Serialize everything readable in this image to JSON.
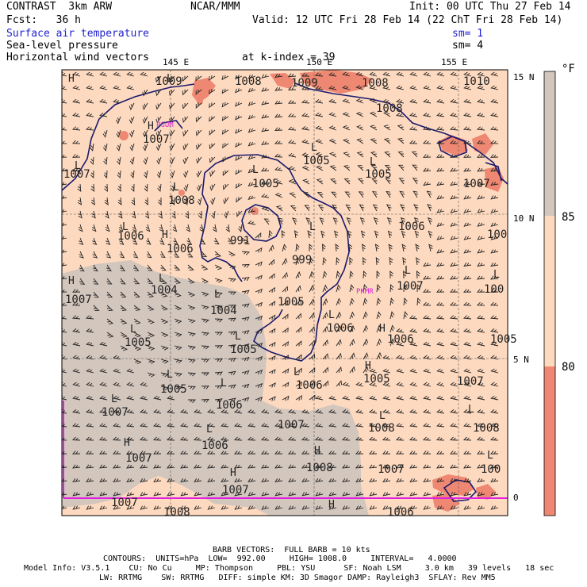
{
  "header": {
    "model": "CONTRAST  3km ARW",
    "org": "NCAR/MMM",
    "init": "Init: 00 UTC Thu 27 Feb 14",
    "fcst": "Fcst:   36 h",
    "valid": "Valid: 12 UTC Fri 28 Feb 14 (22 ChT Fri 28 Feb 14)",
    "field1": "Surface air temperature",
    "field2": "Sea-level pressure",
    "field3": "Horizontal wind vectors",
    "sm1": "sm= 1",
    "sm2": "sm= 4",
    "level": "at k-index = 39"
  },
  "axes": {
    "lon_labels": [
      "145 E",
      "150 E",
      "155 E"
    ],
    "lat_labels": [
      "15 N",
      "10 N",
      "5 N",
      "0"
    ]
  },
  "colorbar": {
    "unit": "°F",
    "labels": [
      "85",
      "80"
    ],
    "colors": {
      "cool": "#ef8872",
      "mid": "#fdd9bf",
      "warm": "#d3c6bd"
    }
  },
  "map_colors": {
    "background": "#fdd9bf",
    "gray": "#d3c6bd",
    "salmon": "#ef8872",
    "coast": "#1a1a6e",
    "equator_line": "#e020e0",
    "station_label": "#e020e0"
  },
  "pressure_labels": [
    {
      "text": "1009"
    },
    {
      "text": "1008"
    },
    {
      "text": "1008"
    },
    {
      "text": "1009"
    },
    {
      "text": "1008"
    },
    {
      "text": "1010"
    },
    {
      "text": "1007"
    },
    {
      "text": "1007"
    },
    {
      "text": "1005"
    },
    {
      "text": "1005"
    },
    {
      "text": "1005"
    },
    {
      "text": "1007"
    },
    {
      "text": "1008"
    },
    {
      "text": "1006"
    },
    {
      "text": "1006"
    },
    {
      "text": "991"
    },
    {
      "text": "999"
    },
    {
      "text": "1006"
    },
    {
      "text": "1007"
    },
    {
      "text": "1004"
    },
    {
      "text": "1004"
    },
    {
      "text": "1005"
    },
    {
      "text": "1007"
    },
    {
      "text": "1005"
    },
    {
      "text": "1005"
    },
    {
      "text": "1006"
    },
    {
      "text": "1006"
    },
    {
      "text": "1005"
    },
    {
      "text": "1006"
    },
    {
      "text": "1006"
    },
    {
      "text": "1005"
    },
    {
      "text": "1007"
    },
    {
      "text": "1007"
    },
    {
      "text": "1006"
    },
    {
      "text": "1008"
    },
    {
      "text": "1007"
    },
    {
      "text": "1007"
    },
    {
      "text": "1007"
    },
    {
      "text": "1008"
    },
    {
      "text": "1007"
    },
    {
      "text": "1007"
    },
    {
      "text": "1008"
    },
    {
      "text": "1006"
    },
    {
      "text": "1008"
    },
    {
      "text": "100"
    },
    {
      "text": "100"
    },
    {
      "text": "100"
    },
    {
      "text": "1005"
    }
  ],
  "hl_labels": [
    "H",
    "H",
    "L",
    "H",
    "L",
    "L",
    "L",
    "L",
    "L",
    "L",
    "H",
    "L",
    "L",
    "L",
    "L",
    "L",
    "L",
    "L",
    "L",
    "H",
    "L",
    "H",
    "L",
    "L",
    "L",
    "L",
    "H",
    "H",
    "H",
    "H",
    "L",
    "L",
    "L"
  ],
  "station_labels": [
    "PGUM",
    "PKMR"
  ],
  "footer": {
    "line1": "BARB VECTORS:  FULL BARB = 10 kts",
    "line2": "CONTOURS:  UNITS=hPa  LOW=  992.00     HIGH= 1008.0     INTERVAL=   4.0000",
    "line3": "Model Info: V3.5.1    CU: No Cu     MP: Thompson     PBL: YSU      SF: Noah LSM     3.0 km   39 levels   18 sec",
    "line4": "LW: RRTMG    SW: RRTMG   DIFF: simple KM: 3D Smagor DAMP: Rayleigh3  SFLAY: Rev MM5"
  }
}
